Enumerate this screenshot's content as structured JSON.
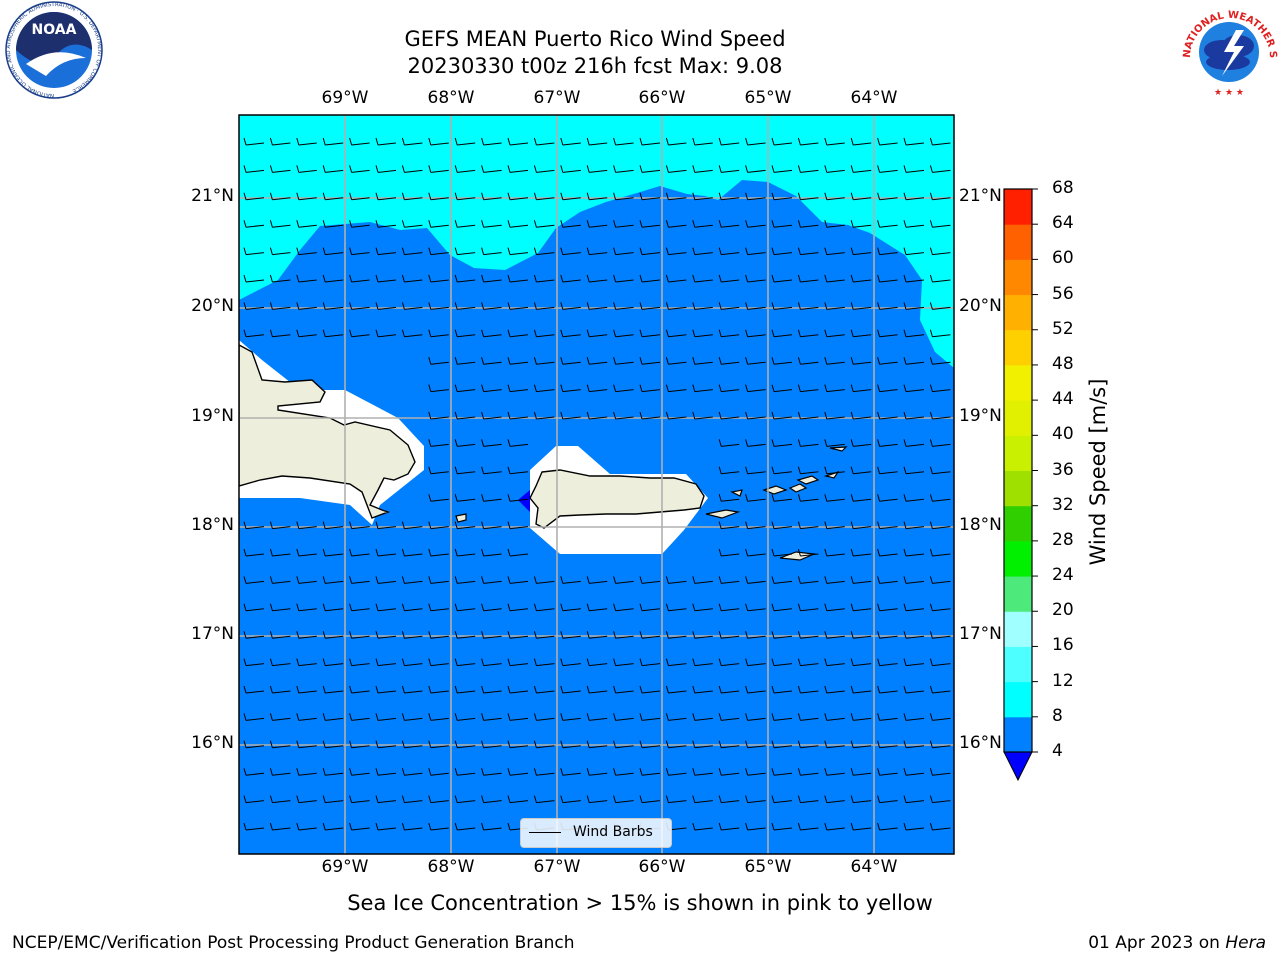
{
  "title": {
    "line1": "GEFS MEAN Puerto Rico Wind Speed",
    "line2": "20230330 t00z 216h fcst   Max: 9.08"
  },
  "map": {
    "lon_labels": [
      "69°W",
      "68°W",
      "67°W",
      "66°W",
      "65°W",
      "64°W"
    ],
    "lat_labels": [
      "21°N",
      "20°N",
      "19°N",
      "18°N",
      "17°N",
      "16°N"
    ],
    "colors": {
      "land": "#eeeedd",
      "below_4": "#0000ff",
      "ws_4_8": "#0080ff",
      "ws_8_12": "#00ffff",
      "gridline": "#b0b0b0"
    },
    "legend_label": "Wind Barbs"
  },
  "colorbar": {
    "label": "Wind Speed [m/s]",
    "ticks": [
      "4",
      "8",
      "12",
      "16",
      "20",
      "24",
      "28",
      "32",
      "36",
      "40",
      "44",
      "48",
      "52",
      "56",
      "60",
      "64",
      "68"
    ],
    "bands": [
      "#0080ff",
      "#00ffff",
      "#4dffff",
      "#a0ffff",
      "#4de97a",
      "#00f000",
      "#30d000",
      "#a0e000",
      "#c8f000",
      "#e0f000",
      "#f0f000",
      "#ffd000",
      "#ffb000",
      "#ff8800",
      "#ff6000",
      "#ff2000"
    ],
    "extend_color": "#0000ff"
  },
  "notes": {
    "ice": "Sea Ice Concentration > 15% is shown in pink to yellow"
  },
  "footer": {
    "left": "NCEP/EMC/Verification Post Processing Product Generation Branch",
    "date": "01 Apr 2023 on ",
    "machine": "Hera"
  },
  "logos": {
    "noaa_text": "NOAA",
    "noaa_ring": "NATIONAL OCEANIC AND ATMOSPHERIC ADMINISTRATION · U.S. DEPARTMENT OF COMMERCE",
    "nws_ring": "NATIONAL WEATHER SERVICE"
  }
}
